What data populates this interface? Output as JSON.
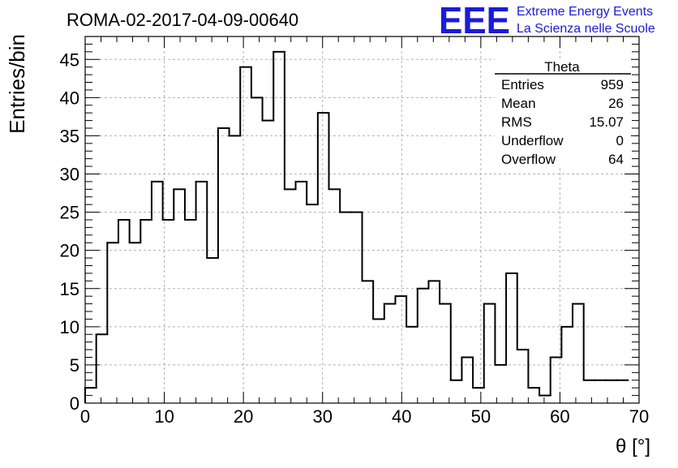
{
  "title": "ROMA-02-2017-04-09-00640",
  "logo": {
    "mark": "EEE",
    "line1": "Extreme Energy Events",
    "line2": "La Scienza nelle Scuole",
    "color": "#1a1adc"
  },
  "stats_box": {
    "name": "Theta",
    "rows": [
      {
        "label": "Entries",
        "value": "959"
      },
      {
        "label": "Mean",
        "value": "26"
      },
      {
        "label": "RMS",
        "value": "15.07"
      },
      {
        "label": "Underflow",
        "value": "0"
      },
      {
        "label": "Overflow",
        "value": "64"
      }
    ]
  },
  "chart_data": {
    "type": "bar",
    "style": "step-histogram",
    "title": "ROMA-02-2017-04-09-00640",
    "xlabel": "θ [°]",
    "ylabel": "Entries/bin",
    "xlim": [
      0,
      70
    ],
    "ylim": [
      0,
      48
    ],
    "bin_width": 1.4,
    "x_ticks": [
      0,
      10,
      20,
      30,
      40,
      50,
      60,
      70
    ],
    "y_ticks": [
      0,
      5,
      10,
      15,
      20,
      25,
      30,
      35,
      40,
      45
    ],
    "grid": true,
    "bin_edges": [
      0,
      1.4,
      2.8,
      4.2,
      5.6,
      7.0,
      8.4,
      9.8,
      11.2,
      12.6,
      14.0,
      15.4,
      16.8,
      18.2,
      19.6,
      21.0,
      22.4,
      23.8,
      25.2,
      26.6,
      28.0,
      29.4,
      30.8,
      32.2,
      33.6,
      35.0,
      36.4,
      37.8,
      39.2,
      40.6,
      42.0,
      43.4,
      44.8,
      46.2,
      47.6,
      49.0,
      50.4,
      51.8,
      53.2,
      54.6,
      56.0,
      57.4,
      58.8,
      60.2,
      61.6,
      63.0,
      64.4,
      65.8,
      67.2,
      68.6
    ],
    "values": [
      2,
      9,
      21,
      24,
      21,
      24,
      29,
      24,
      28,
      24,
      29,
      19,
      36,
      35,
      44,
      40,
      37,
      46,
      28,
      29,
      26,
      38,
      28,
      25,
      25,
      16,
      11,
      13,
      14,
      10,
      15,
      16,
      13,
      3,
      6,
      2,
      13,
      5,
      17,
      7,
      2,
      1,
      6,
      10,
      13,
      3,
      3,
      3,
      3
    ]
  }
}
